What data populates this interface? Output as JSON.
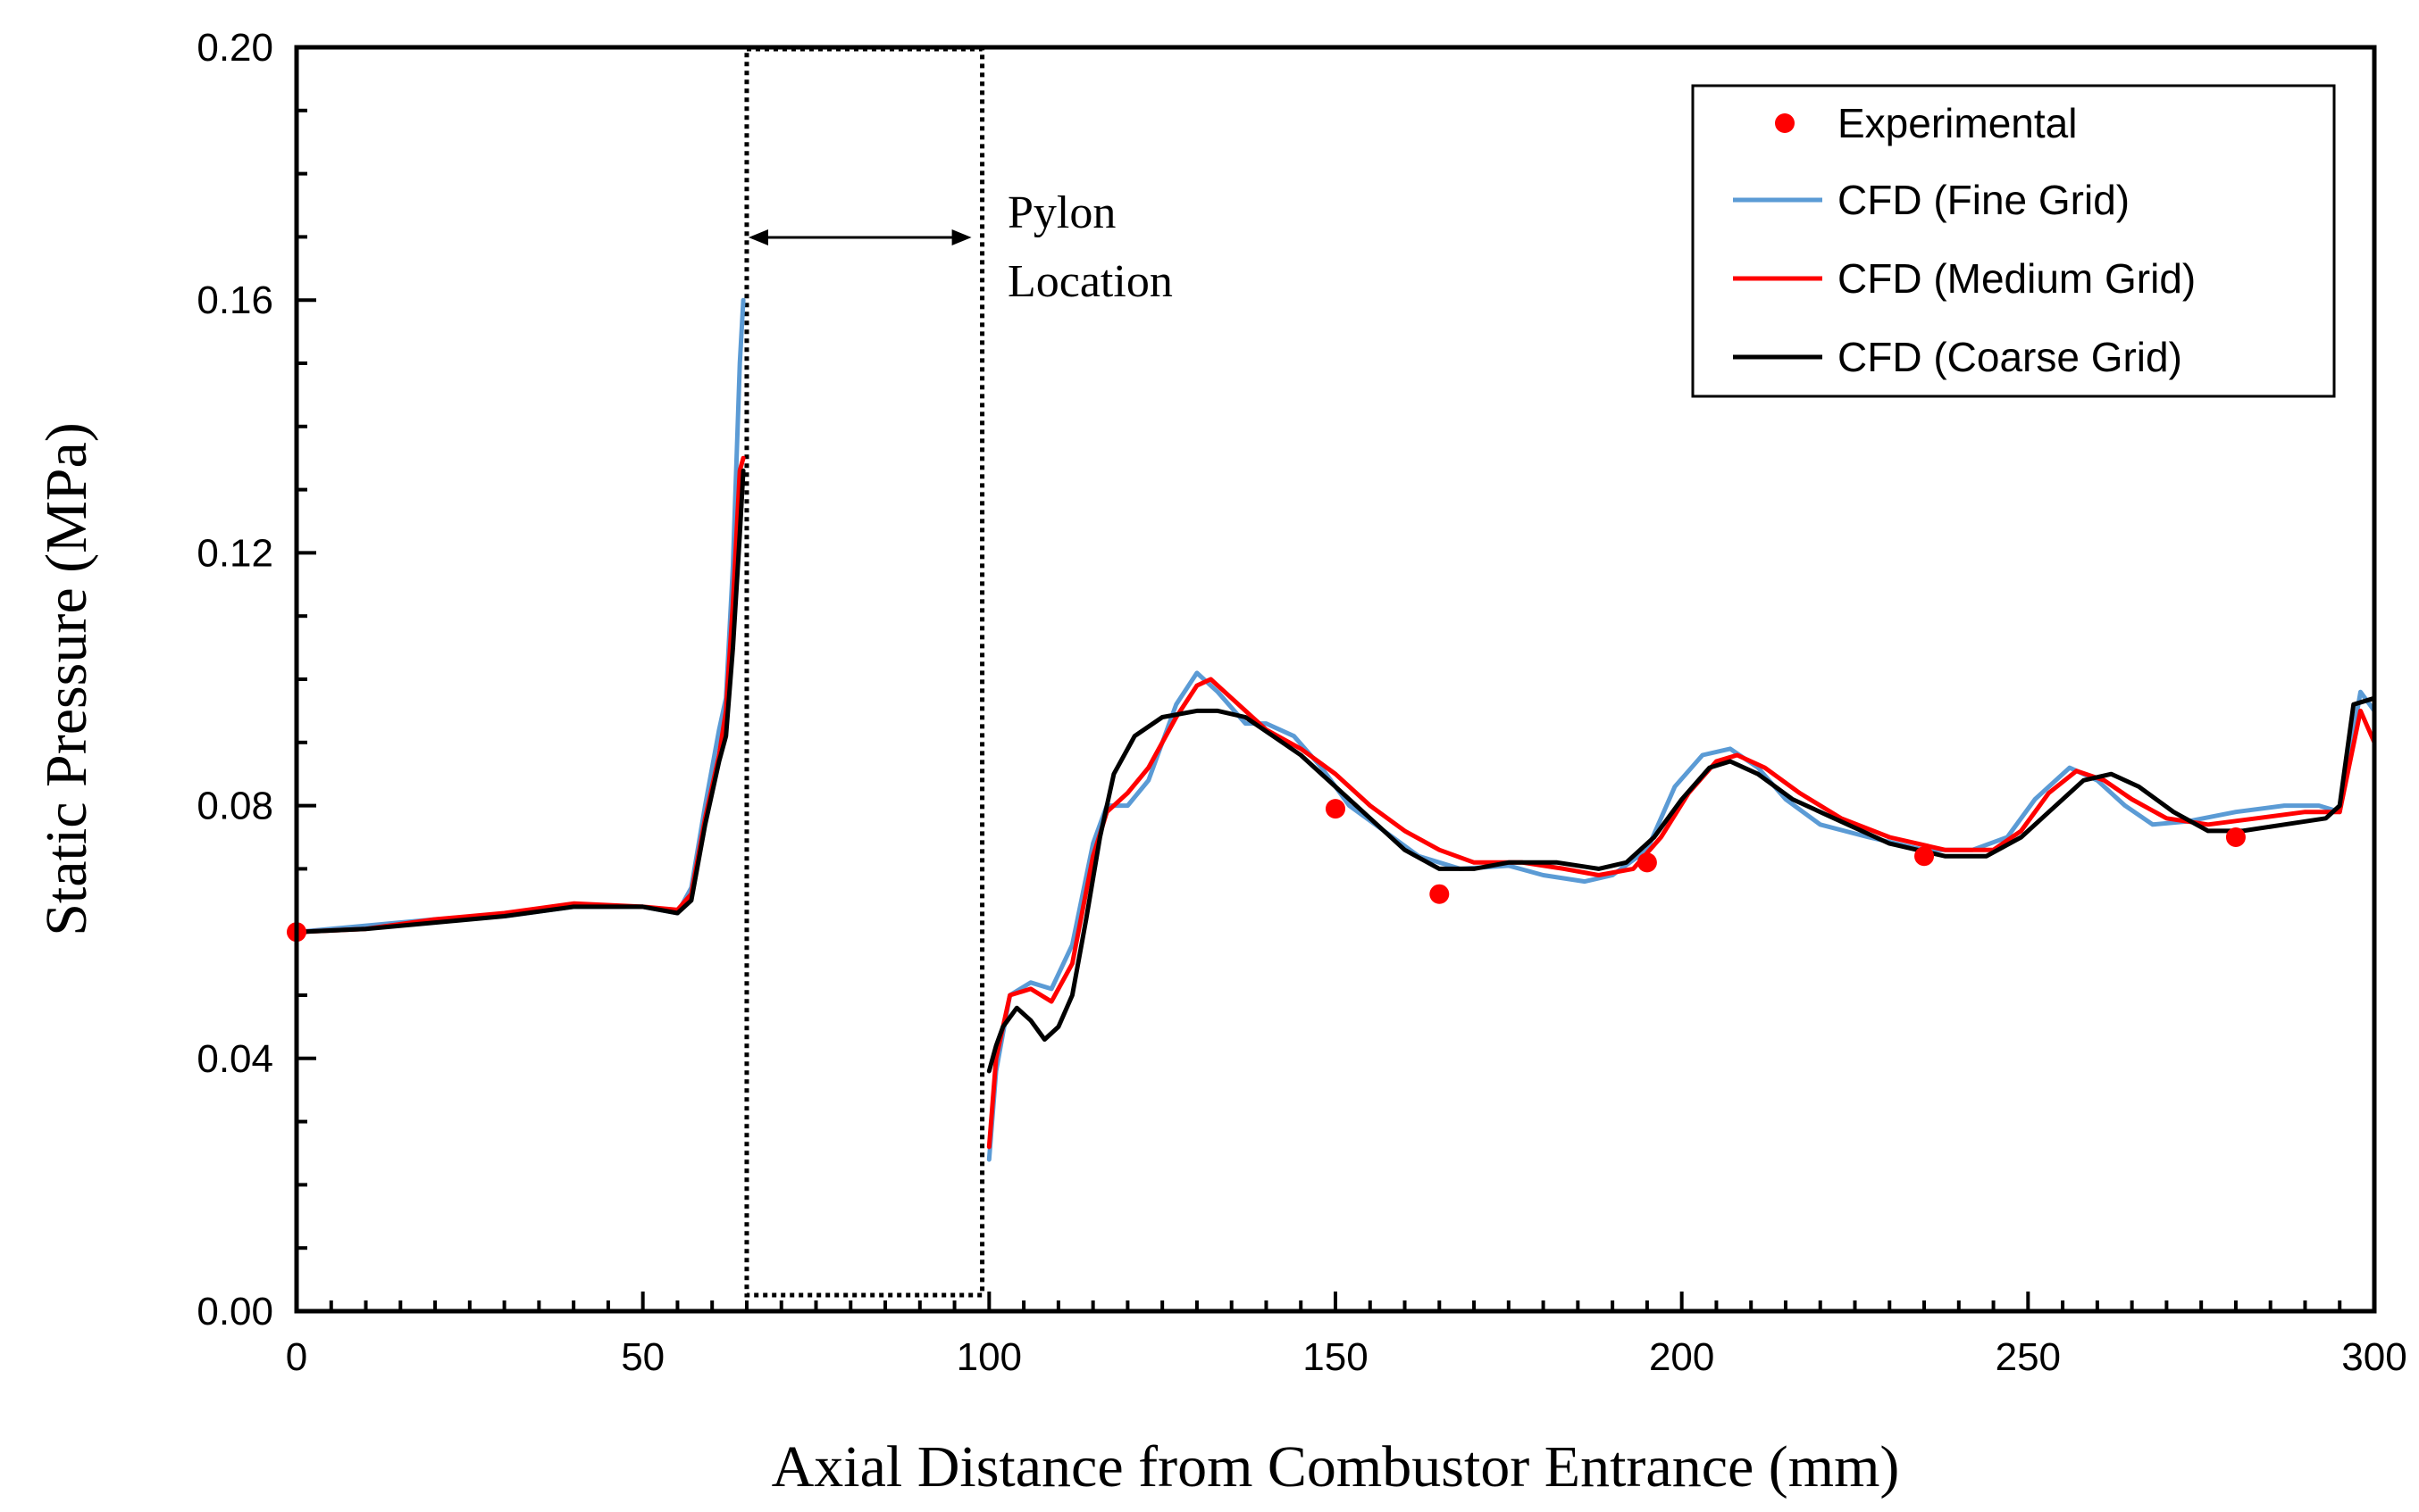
{
  "chart_data": {
    "type": "line",
    "title": "",
    "xlabel": "Axial Distance from Combustor Entrance (mm)",
    "ylabel": "Static Pressure (MPa)",
    "xlim": [
      0,
      300
    ],
    "ylim": [
      0,
      0.2
    ],
    "xticks": [
      "0",
      "50",
      "100",
      "150",
      "200",
      "250",
      "300"
    ],
    "yticks": [
      "0.00",
      "0.04",
      "0.08",
      "0.12",
      "0.16",
      "0.20"
    ],
    "grid": false,
    "legend_position": "top-right",
    "annotation": {
      "line1": "Pylon",
      "line2": "Location",
      "x_start": 65,
      "x_end": 99
    },
    "experimental": {
      "name": "Experimental",
      "color": "#ff0000",
      "x": [
        0,
        150,
        165,
        195,
        235,
        280
      ],
      "y": [
        0.06,
        0.0795,
        0.066,
        0.071,
        0.072,
        0.075
      ]
    },
    "series": [
      {
        "name": "CFD (Fine Grid)",
        "color": "#5b9bd5",
        "segments": [
          {
            "x": [
              0,
              10,
              20,
              30,
              40,
              50,
              55,
              57,
              59,
              61,
              62,
              63,
              64,
              64.5
            ],
            "y": [
              0.06,
              0.061,
              0.062,
              0.0625,
              0.064,
              0.064,
              0.063,
              0.067,
              0.08,
              0.092,
              0.097,
              0.118,
              0.15,
              0.16
            ]
          },
          {
            "x": [
              100,
              101,
              103,
              106,
              109,
              112,
              115,
              117,
              120,
              123,
              127,
              130,
              133,
              137,
              140,
              144,
              148,
              152,
              157,
              162,
              168,
              175,
              180,
              186,
              190,
              195,
              199,
              203,
              207,
              211,
              215,
              220,
              227,
              235,
              242,
              247,
              251,
              256,
              260,
              264,
              268,
              273,
              280,
              287,
              292,
              295,
              298,
              300
            ],
            "y": [
              0.024,
              0.038,
              0.05,
              0.052,
              0.051,
              0.058,
              0.074,
              0.08,
              0.08,
              0.084,
              0.096,
              0.101,
              0.098,
              0.093,
              0.093,
              0.091,
              0.086,
              0.08,
              0.076,
              0.072,
              0.07,
              0.0705,
              0.069,
              0.068,
              0.069,
              0.073,
              0.083,
              0.088,
              0.089,
              0.086,
              0.081,
              0.077,
              0.075,
              0.073,
              0.073,
              0.075,
              0.081,
              0.086,
              0.084,
              0.08,
              0.077,
              0.0775,
              0.079,
              0.08,
              0.08,
              0.079,
              0.098,
              0.095
            ]
          }
        ]
      },
      {
        "name": "CFD (Medium Grid)",
        "color": "#ff0000",
        "segments": [
          {
            "x": [
              0,
              10,
              20,
              30,
              40,
              50,
              55,
              57,
              59,
              61,
              62,
              63,
              64,
              64.5
            ],
            "y": [
              0.06,
              0.0605,
              0.062,
              0.063,
              0.0645,
              0.064,
              0.0635,
              0.066,
              0.078,
              0.088,
              0.095,
              0.112,
              0.133,
              0.135
            ]
          },
          {
            "x": [
              100,
              101,
              103,
              106,
              109,
              112,
              115,
              117,
              120,
              123,
              127,
              130,
              132,
              135,
              140,
              145,
              150,
              155,
              160,
              165,
              170,
              177,
              183,
              188,
              193,
              197,
              201,
              205,
              208,
              212,
              217,
              223,
              230,
              238,
              245,
              249,
              253,
              257,
              261,
              265,
              270,
              276,
              283,
              290,
              295,
              298,
              300
            ],
            "y": [
              0.026,
              0.04,
              0.05,
              0.051,
              0.049,
              0.055,
              0.072,
              0.079,
              0.082,
              0.086,
              0.094,
              0.099,
              0.1,
              0.097,
              0.092,
              0.089,
              0.085,
              0.08,
              0.076,
              0.073,
              0.071,
              0.071,
              0.07,
              0.069,
              0.07,
              0.075,
              0.082,
              0.087,
              0.088,
              0.086,
              0.082,
              0.078,
              0.075,
              0.073,
              0.073,
              0.076,
              0.082,
              0.0855,
              0.084,
              0.081,
              0.078,
              0.077,
              0.078,
              0.079,
              0.079,
              0.095,
              0.09
            ]
          }
        ]
      },
      {
        "name": "CFD (Coarse Grid)",
        "color": "#000000",
        "segments": [
          {
            "x": [
              0,
              10,
              20,
              30,
              40,
              50,
              55,
              57,
              59,
              61,
              62,
              63,
              64,
              64.5
            ],
            "y": [
              0.06,
              0.0605,
              0.0615,
              0.0625,
              0.064,
              0.064,
              0.063,
              0.065,
              0.077,
              0.087,
              0.091,
              0.105,
              0.123,
              0.133
            ]
          },
          {
            "x": [
              100,
              101,
              102,
              104,
              106,
              108,
              110,
              112,
              114,
              116,
              118,
              121,
              125,
              130,
              133,
              137,
              141,
              145,
              150,
              155,
              160,
              165,
              170,
              175,
              182,
              188,
              192,
              196,
              200,
              204,
              207,
              211,
              216,
              222,
              230,
              238,
              244,
              249,
              253,
              258,
              262,
              266,
              271,
              276,
              281,
              287,
              293,
              295,
              297,
              300
            ],
            "y": [
              0.038,
              0.042,
              0.045,
              0.048,
              0.046,
              0.043,
              0.045,
              0.05,
              0.062,
              0.075,
              0.085,
              0.091,
              0.094,
              0.095,
              0.095,
              0.094,
              0.091,
              0.088,
              0.083,
              0.078,
              0.073,
              0.07,
              0.07,
              0.071,
              0.071,
              0.07,
              0.071,
              0.075,
              0.081,
              0.086,
              0.087,
              0.085,
              0.081,
              0.078,
              0.074,
              0.072,
              0.072,
              0.075,
              0.079,
              0.084,
              0.085,
              0.083,
              0.079,
              0.076,
              0.076,
              0.077,
              0.078,
              0.08,
              0.096,
              0.097
            ]
          }
        ]
      }
    ]
  }
}
